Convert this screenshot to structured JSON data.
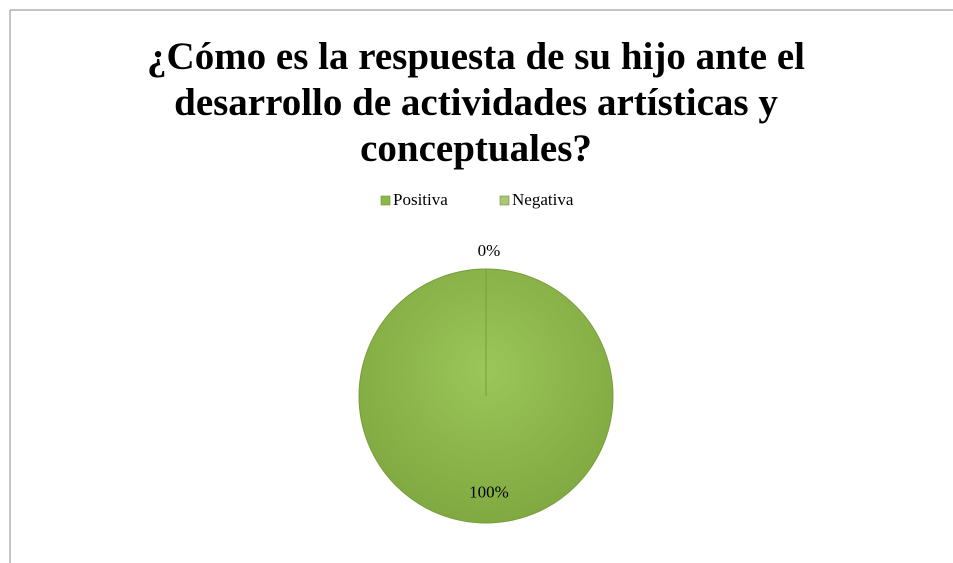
{
  "chart_data": {
    "type": "pie",
    "title": "¿Cómo es la respuesta de su hijo ante el desarrollo de actividades artísticas y conceptuales?",
    "categories": [
      "Positiva",
      "Negativa"
    ],
    "values": [
      100,
      0
    ],
    "value_labels": [
      "100%",
      "0%"
    ],
    "colors": [
      "#8cb849",
      "#a9c777"
    ],
    "legend": "top"
  }
}
